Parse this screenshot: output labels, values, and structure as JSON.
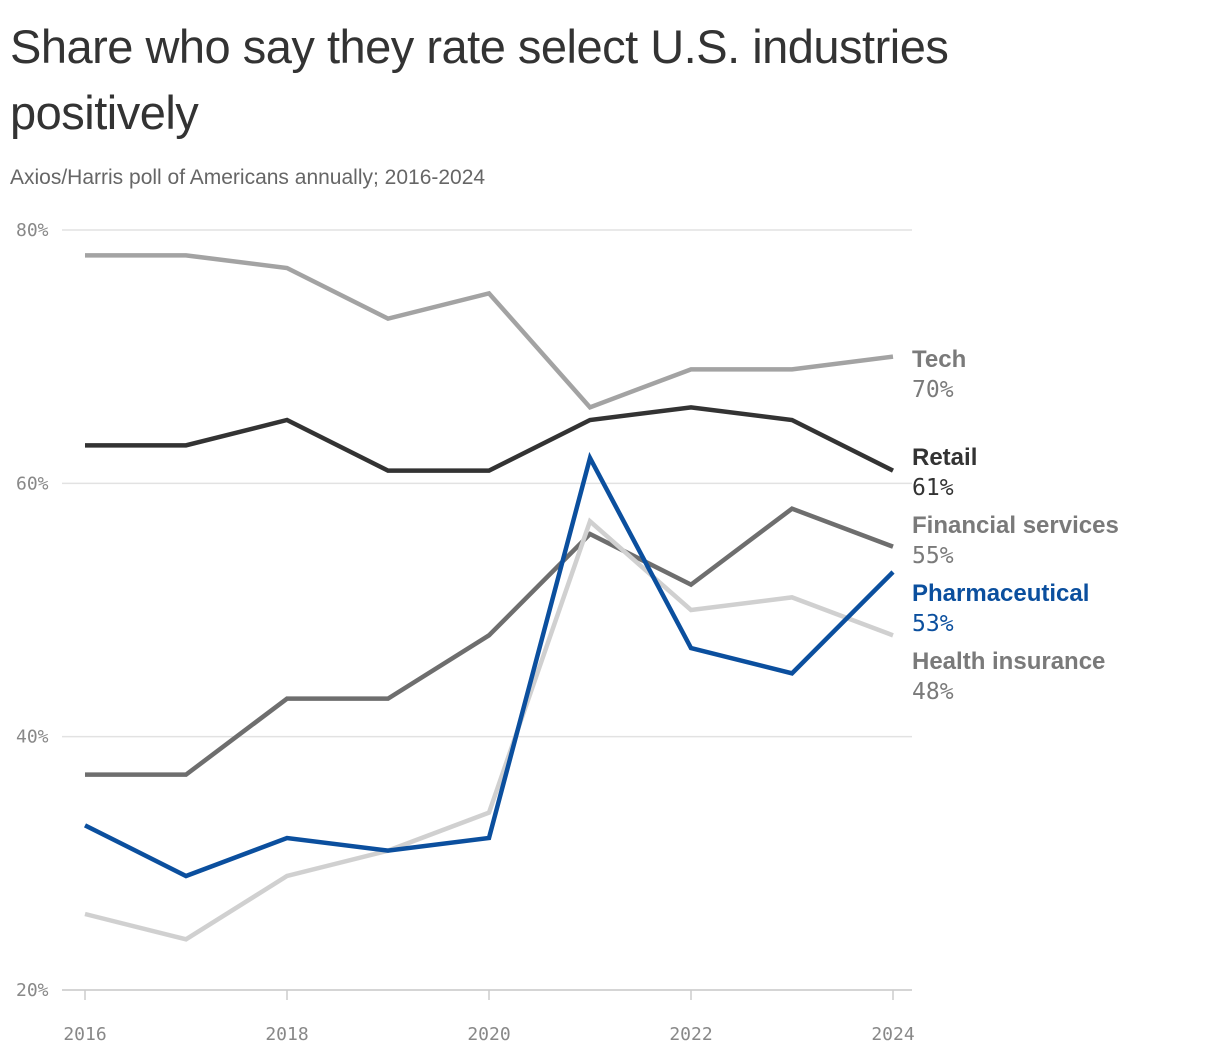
{
  "chart_data": {
    "type": "line",
    "title": "Share who say they rate select U.S. industries positively",
    "subtitle": "Axios/Harris poll of Americans annually; 2016-2024",
    "x": [
      2016,
      2017,
      2018,
      2019,
      2020,
      2021,
      2022,
      2023,
      2024
    ],
    "x_tick_labels": [
      "2016",
      "2018",
      "2020",
      "2022",
      "2024"
    ],
    "y_tick_labels": [
      "80%",
      "60%",
      "40%",
      "20%"
    ],
    "ylim": [
      20,
      80
    ],
    "grid": "horizontal",
    "legend": "direct labels at right",
    "series": [
      {
        "name": "Tech",
        "end_label": "70%",
        "color": "#a3a3a3",
        "label_color": "#7a7a7a",
        "values": [
          78,
          78,
          77,
          73,
          75,
          66,
          69,
          69,
          70
        ]
      },
      {
        "name": "Retail",
        "end_label": "61%",
        "color": "#333333",
        "label_color": "#333333",
        "values": [
          63,
          63,
          65,
          61,
          61,
          65,
          66,
          65,
          61
        ]
      },
      {
        "name": "Financial services",
        "end_label": "55%",
        "color": "#6e6e6e",
        "label_color": "#7a7a7a",
        "values": [
          37,
          37,
          43,
          43,
          48,
          56,
          52,
          58,
          55
        ]
      },
      {
        "name": "Health insurance",
        "end_label": "48%",
        "color": "#d0d0d0",
        "label_color": "#7a7a7a",
        "values": [
          26,
          24,
          29,
          31,
          34,
          57,
          50,
          51,
          48
        ]
      },
      {
        "name": "Pharmaceutical",
        "end_label": "53%",
        "color": "#0b4f9e",
        "label_color": "#0b4f9e",
        "values": [
          33,
          29,
          32,
          31,
          32,
          62,
          47,
          45,
          53
        ]
      }
    ]
  }
}
